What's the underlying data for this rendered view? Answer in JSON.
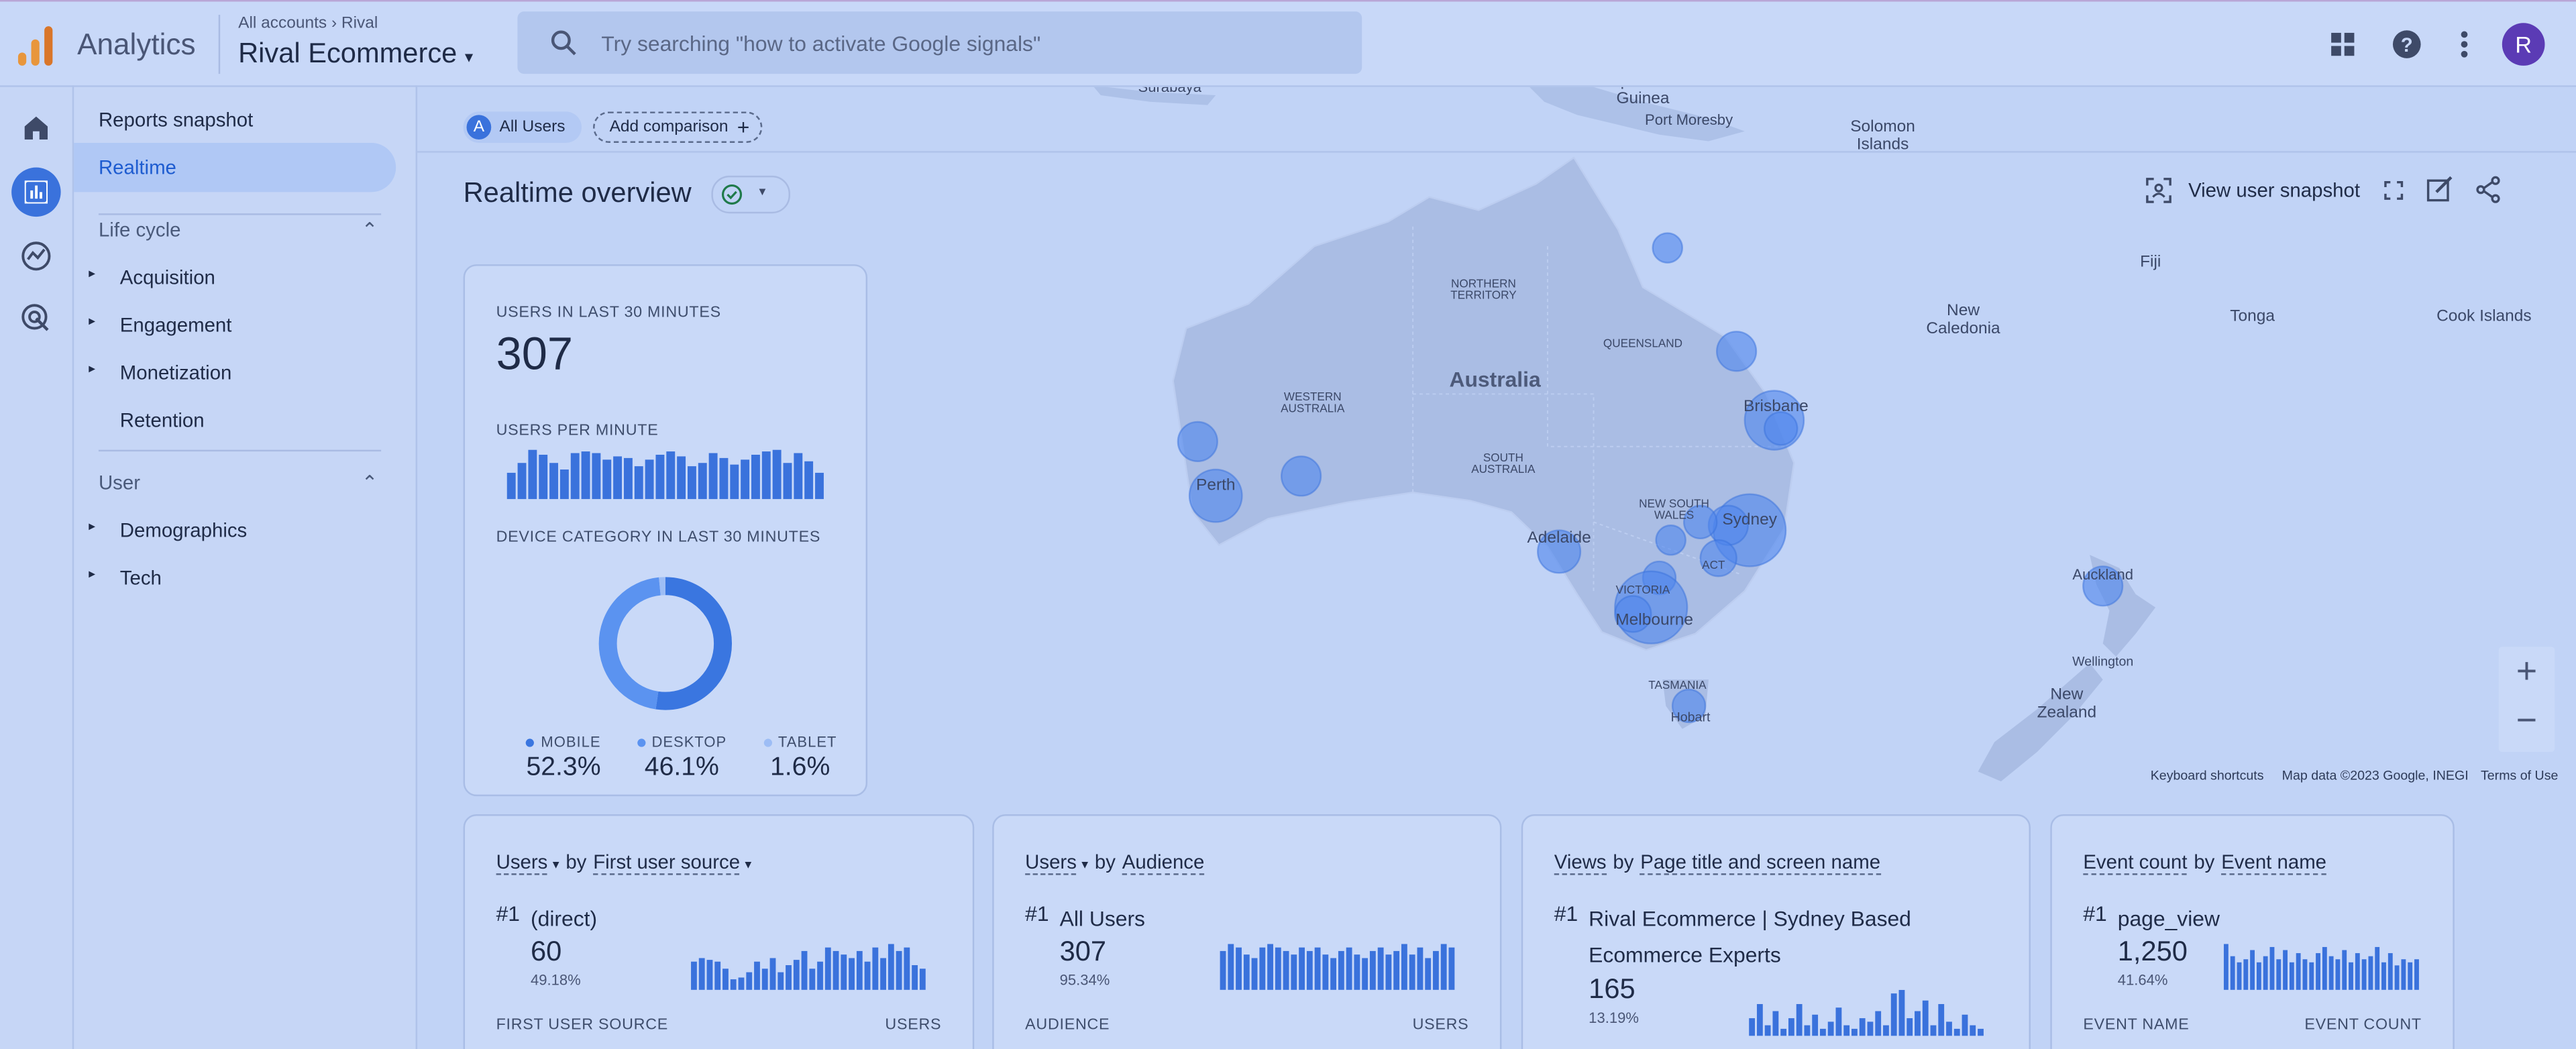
{
  "header": {
    "app": "Analytics",
    "crumb_root": "All accounts",
    "crumb_leaf": "Rival",
    "property": "Rival Ecommerce",
    "search": "Try searching \"how to activate Google signals\"",
    "avatar": "R"
  },
  "nav": {
    "top": [
      "Reports snapshot",
      "Realtime"
    ],
    "sections": [
      {
        "title": "Life cycle",
        "items": [
          "Acquisition",
          "Engagement",
          "Monetization",
          "Retention"
        ]
      },
      {
        "title": "User",
        "items": [
          "Demographics",
          "Tech"
        ]
      }
    ]
  },
  "toolbar": {
    "badge": "A",
    "segment": "All Users",
    "compare": "Add comparison"
  },
  "page_title": "Realtime overview",
  "actions": {
    "snapshot": "View user snapshot"
  },
  "summary": {
    "users_label": "USERS IN LAST 30 MINUTES",
    "users": "307",
    "per_minute_label": "USERS PER MINUTE",
    "per_minute": [
      16,
      22,
      30,
      27,
      22,
      18,
      28,
      29,
      28,
      24,
      26,
      25,
      20,
      24,
      27,
      29,
      26,
      20,
      22,
      28,
      25,
      21,
      24,
      27,
      29,
      30,
      22,
      28,
      23,
      16
    ],
    "device_label": "DEVICE CATEGORY IN LAST 30 MINUTES",
    "devices": [
      {
        "name": "MOBILE",
        "value": 52.3,
        "label": "52.3%",
        "color": "#3a76e0"
      },
      {
        "name": "DESKTOP",
        "value": 46.1,
        "label": "46.1%",
        "color": "#5b93f0"
      },
      {
        "name": "TABLET",
        "value": 1.6,
        "label": "1.6%",
        "color": "#9dbdf5"
      }
    ]
  },
  "map": {
    "labels": [
      "Surabaya",
      "Papua New Guinea",
      "Port Moresby",
      "Solomon Islands",
      "Fiji",
      "New Caledonia",
      "Tonga",
      "Cook Islands",
      "NORTHERN TERRITORY",
      "QUEENSLAND",
      "Australia",
      "WESTERN AUSTRALIA",
      "SOUTH AUSTRALIA",
      "NEW SOUTH WALES",
      "ACT",
      "VICTORIA",
      "TASMANIA",
      "Hobart",
      "Melbourne",
      "Adelaide",
      "Perth",
      "Brisbane",
      "Sydney",
      "Auckland",
      "Wellington",
      "New Zealand"
    ],
    "footer": [
      "Keyboard shortcuts",
      "Map data ©2023 Google, INEGI",
      "Terms of Use"
    ]
  },
  "cards": [
    {
      "metric": "Users",
      "by": "by",
      "dimension": "First user source",
      "rank": "#1",
      "top": "(direct)",
      "value": "60",
      "share": "49.18%",
      "col_left": "FIRST USER SOURCE",
      "col_right": "USERS",
      "spark": [
        16,
        18,
        17,
        16,
        12,
        6,
        7,
        10,
        16,
        12,
        18,
        10,
        14,
        17,
        22,
        12,
        16,
        24,
        22,
        20,
        18,
        22,
        16,
        24,
        18,
        26,
        22,
        24,
        14,
        12
      ]
    },
    {
      "metric": "Users",
      "by": "by",
      "dimension": "Audience",
      "rank": "#1",
      "top": "All Users",
      "value": "307",
      "share": "95.34%",
      "col_left": "AUDIENCE",
      "col_right": "USERS",
      "spark": [
        22,
        26,
        24,
        20,
        18,
        24,
        26,
        24,
        22,
        20,
        24,
        22,
        24,
        20,
        18,
        22,
        24,
        20,
        18,
        22,
        24,
        20,
        22,
        26,
        20,
        24,
        18,
        22,
        26,
        24
      ]
    },
    {
      "metric": "Views",
      "by": "by",
      "dimension": "Page title and screen name",
      "rank": "#1",
      "top": "Rival Ecommerce | Sydney Based Ecommerce Experts",
      "value": "165",
      "share": "13.19%",
      "spark": [
        10,
        18,
        6,
        14,
        4,
        10,
        18,
        6,
        12,
        4,
        8,
        16,
        6,
        4,
        10,
        8,
        14,
        6,
        24,
        26,
        10,
        14,
        20,
        6,
        18,
        8,
        4,
        12,
        6,
        4
      ]
    },
    {
      "metric": "Event count",
      "by": "by",
      "dimension": "Event name",
      "rank": "#1",
      "top": "page_view",
      "value": "1,250",
      "share": "41.64%",
      "col_left": "EVENT NAME",
      "col_right": "EVENT COUNT",
      "spark": [
        30,
        22,
        18,
        20,
        26,
        18,
        22,
        28,
        20,
        26,
        18,
        24,
        20,
        18,
        24,
        28,
        22,
        20,
        26,
        18,
        24,
        20,
        22,
        28,
        18,
        24,
        16,
        20,
        18,
        20
      ]
    }
  ]
}
